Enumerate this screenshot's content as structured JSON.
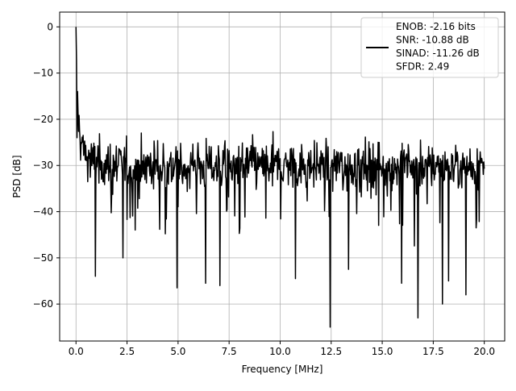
{
  "chart_data": {
    "type": "line",
    "title": "",
    "xlabel": "Frequency [MHz]",
    "ylabel": "PSD [dB]",
    "xlim": [
      -0.8,
      21.0
    ],
    "ylim": [
      -68.0,
      3.2
    ],
    "grid": true,
    "legend_position": "top-right",
    "x_ticks": [
      0.0,
      2.5,
      5.0,
      7.5,
      10.0,
      12.5,
      15.0,
      17.5,
      20.0
    ],
    "x_tick_labels": [
      "0.0",
      "2.5",
      "5.0",
      "7.5",
      "10.0",
      "12.5",
      "15.0",
      "17.5",
      "20.0"
    ],
    "y_ticks": [
      0,
      -10,
      -20,
      -30,
      -40,
      -50,
      -60
    ],
    "y_tick_labels": [
      "0",
      "−10",
      "−20",
      "−30",
      "−40",
      "−50",
      "−60"
    ],
    "legend_entries": [
      "ENOB: -2.16 bits",
      "SNR: -10.88 dB",
      "SINAD: -11.26 dB",
      "SFDR: 2.49"
    ],
    "series": [
      {
        "color": "#000000",
        "x_range": [
          0.0,
          20.0
        ],
        "points_per_MHz": 40,
        "description_values": {
          "dc_peak": 0.0,
          "near_dc_level": -14,
          "noise_upper_envelope": -20,
          "noise_median": -30,
          "noise_lower_typical": -40,
          "deep_nulls": [
            {
              "x": 0.95,
              "y": -54
            },
            {
              "x": 2.3,
              "y": -50
            },
            {
              "x": 4.95,
              "y": -56.5
            },
            {
              "x": 6.35,
              "y": -55.5
            },
            {
              "x": 7.05,
              "y": -56
            },
            {
              "x": 10.75,
              "y": -54.5
            },
            {
              "x": 12.45,
              "y": -65
            },
            {
              "x": 13.35,
              "y": -52.5
            },
            {
              "x": 15.95,
              "y": -55.5
            },
            {
              "x": 16.75,
              "y": -63
            },
            {
              "x": 17.95,
              "y": -60
            },
            {
              "x": 18.25,
              "y": -55
            },
            {
              "x": 19.1,
              "y": -58
            }
          ]
        }
      }
    ]
  }
}
